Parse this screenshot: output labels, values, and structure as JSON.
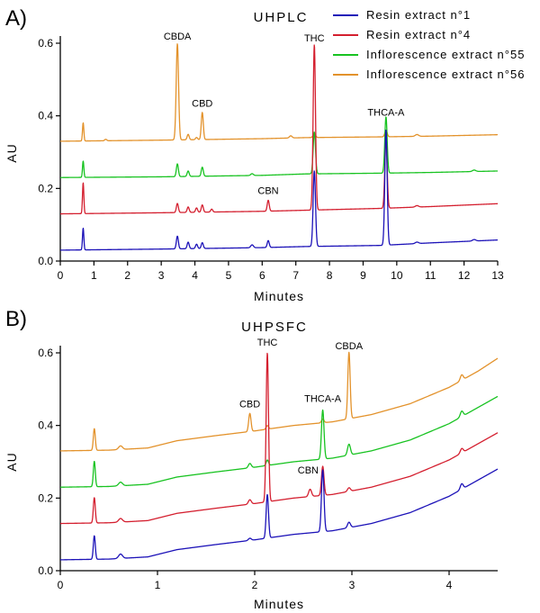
{
  "chart_data": [
    {
      "type": "line",
      "panel": "A)",
      "title": "UHPLC",
      "xlabel": "Minutes",
      "ylabel": "AU",
      "xlim": [
        0,
        13
      ],
      "ylim": [
        0,
        0.6
      ],
      "xticks": [
        0,
        1,
        2,
        3,
        4,
        5,
        6,
        7,
        8,
        9,
        10,
        11,
        12,
        13
      ],
      "yticks": [
        0.0,
        0.2,
        0.4,
        0.6
      ],
      "ytick_labels": [
        "0.0",
        "0.2",
        "0.4",
        "0.6"
      ],
      "legend_position": "top-right",
      "series": [
        {
          "name": "Resin extract n°1",
          "color": "#1c12b8",
          "baseline": [
            [
              0,
              0.03
            ],
            [
              3,
              0.033
            ],
            [
              6,
              0.037
            ],
            [
              7.3,
              0.04
            ],
            [
              9.5,
              0.043
            ],
            [
              11,
              0.05
            ],
            [
              13,
              0.058
            ]
          ],
          "peaks": [
            [
              0.68,
              0.06,
              0.02
            ],
            [
              3.48,
              0.035,
              0.03
            ],
            [
              3.8,
              0.018,
              0.03
            ],
            [
              4.05,
              0.012,
              0.03
            ],
            [
              4.22,
              0.016,
              0.03
            ],
            [
              5.7,
              0.008,
              0.04
            ],
            [
              6.18,
              0.019,
              0.03
            ],
            [
              7.55,
              0.208,
              0.035
            ],
            [
              9.68,
              0.318,
              0.035
            ],
            [
              10.6,
              0.004,
              0.05
            ],
            [
              12.3,
              0.004,
              0.05
            ]
          ]
        },
        {
          "name": "Resin extract n°4",
          "color": "#d41f2f",
          "baseline": [
            [
              0,
              0.13
            ],
            [
              3,
              0.133
            ],
            [
              6,
              0.137
            ],
            [
              7.3,
              0.14
            ],
            [
              9.5,
              0.145
            ],
            [
              11,
              0.15
            ],
            [
              13,
              0.158
            ]
          ],
          "peaks": [
            [
              0.68,
              0.085,
              0.02
            ],
            [
              3.48,
              0.025,
              0.03
            ],
            [
              3.8,
              0.015,
              0.03
            ],
            [
              4.05,
              0.012,
              0.03
            ],
            [
              4.22,
              0.02,
              0.03
            ],
            [
              4.5,
              0.008,
              0.03
            ],
            [
              6.18,
              0.03,
              0.03
            ],
            [
              7.55,
              0.455,
              0.035
            ],
            [
              9.68,
              0.19,
              0.035
            ],
            [
              10.6,
              0.004,
              0.05
            ]
          ]
        },
        {
          "name": "Inflorescence extract n°55",
          "color": "#18c321",
          "baseline": [
            [
              0,
              0.23
            ],
            [
              3,
              0.232
            ],
            [
              6,
              0.236
            ],
            [
              7.3,
              0.24
            ],
            [
              9.5,
              0.242
            ],
            [
              11,
              0.244
            ],
            [
              13,
              0.248
            ]
          ],
          "peaks": [
            [
              0.68,
              0.045,
              0.02
            ],
            [
              3.48,
              0.035,
              0.03
            ],
            [
              3.8,
              0.015,
              0.03
            ],
            [
              4.22,
              0.025,
              0.03
            ],
            [
              5.7,
              0.005,
              0.04
            ],
            [
              7.55,
              0.115,
              0.035
            ],
            [
              9.68,
              0.155,
              0.035
            ],
            [
              12.3,
              0.004,
              0.05
            ]
          ]
        },
        {
          "name": "Inflorescence extract n°56",
          "color": "#e3922b",
          "baseline": [
            [
              0,
              0.33
            ],
            [
              3,
              0.333
            ],
            [
              6,
              0.337
            ],
            [
              7.3,
              0.34
            ],
            [
              9.5,
              0.342
            ],
            [
              11,
              0.344
            ],
            [
              13,
              0.348
            ]
          ],
          "peaks": [
            [
              0.68,
              0.05,
              0.02
            ],
            [
              1.35,
              0.004,
              0.03
            ],
            [
              3.48,
              0.265,
              0.035
            ],
            [
              3.8,
              0.015,
              0.03
            ],
            [
              4.05,
              0.006,
              0.03
            ],
            [
              4.22,
              0.075,
              0.03
            ],
            [
              6.85,
              0.006,
              0.04
            ],
            [
              7.55,
              0.012,
              0.035
            ],
            [
              9.68,
              0.018,
              0.035
            ],
            [
              10.6,
              0.005,
              0.05
            ]
          ]
        }
      ],
      "annotations": [
        {
          "text": "CBDA",
          "x": 3.48,
          "y": 0.6
        },
        {
          "text": "CBD",
          "x": 4.22,
          "y": 0.415
        },
        {
          "text": "THC",
          "x": 7.55,
          "y": 0.595
        },
        {
          "text": "CBN",
          "x": 6.18,
          "y": 0.175
        },
        {
          "text": "THCA-A",
          "x": 9.68,
          "y": 0.39
        }
      ]
    },
    {
      "type": "line",
      "panel": "B)",
      "title": "UHPSFC",
      "xlabel": "Minutes",
      "ylabel": "AU",
      "xlim": [
        0,
        4.5
      ],
      "ylim": [
        0,
        0.6
      ],
      "xticks": [
        0,
        1,
        2,
        3,
        4
      ],
      "yticks": [
        0.0,
        0.2,
        0.4,
        0.6
      ],
      "ytick_labels": [
        "0.0",
        "0.2",
        "0.4",
        "0.6"
      ],
      "series": [
        {
          "name": "Resin extract n°1",
          "color": "#1c12b8",
          "baseline": [
            [
              0,
              0.03
            ],
            [
              0.5,
              0.032
            ],
            [
              0.9,
              0.038
            ],
            [
              1.2,
              0.058
            ],
            [
              1.6,
              0.072
            ],
            [
              2.0,
              0.085
            ],
            [
              2.4,
              0.1
            ],
            [
              2.8,
              0.11
            ],
            [
              3.2,
              0.13
            ],
            [
              3.6,
              0.16
            ],
            [
              4.0,
              0.205
            ],
            [
              4.3,
              0.25
            ],
            [
              4.5,
              0.28
            ]
          ],
          "peaks": [
            [
              0.35,
              0.065,
              0.01
            ],
            [
              0.62,
              0.012,
              0.02
            ],
            [
              1.95,
              0.006,
              0.015
            ],
            [
              2.13,
              0.12,
              0.012
            ],
            [
              2.7,
              0.17,
              0.013
            ],
            [
              2.97,
              0.015,
              0.015
            ],
            [
              4.13,
              0.015,
              0.015
            ]
          ]
        },
        {
          "name": "Resin extract n°4",
          "color": "#d41f2f",
          "baseline": [
            [
              0,
              0.13
            ],
            [
              0.5,
              0.132
            ],
            [
              0.9,
              0.138
            ],
            [
              1.2,
              0.158
            ],
            [
              1.6,
              0.172
            ],
            [
              2.0,
              0.185
            ],
            [
              2.4,
              0.2
            ],
            [
              2.8,
              0.21
            ],
            [
              3.2,
              0.23
            ],
            [
              3.6,
              0.26
            ],
            [
              4.0,
              0.305
            ],
            [
              4.3,
              0.35
            ],
            [
              4.5,
              0.38
            ]
          ],
          "peaks": [
            [
              0.35,
              0.07,
              0.01
            ],
            [
              0.62,
              0.01,
              0.02
            ],
            [
              1.95,
              0.012,
              0.015
            ],
            [
              2.13,
              0.41,
              0.012
            ],
            [
              2.57,
              0.02,
              0.015
            ],
            [
              2.7,
              0.08,
              0.013
            ],
            [
              2.97,
              0.01,
              0.015
            ],
            [
              4.13,
              0.012,
              0.015
            ]
          ]
        },
        {
          "name": "Inflorescence extract n°55",
          "color": "#18c321",
          "baseline": [
            [
              0,
              0.23
            ],
            [
              0.5,
              0.232
            ],
            [
              0.9,
              0.238
            ],
            [
              1.2,
              0.258
            ],
            [
              1.6,
              0.272
            ],
            [
              2.0,
              0.285
            ],
            [
              2.4,
              0.3
            ],
            [
              2.8,
              0.31
            ],
            [
              3.2,
              0.33
            ],
            [
              3.6,
              0.36
            ],
            [
              4.0,
              0.405
            ],
            [
              4.3,
              0.45
            ],
            [
              4.5,
              0.48
            ]
          ],
          "peaks": [
            [
              0.35,
              0.07,
              0.01
            ],
            [
              0.62,
              0.01,
              0.02
            ],
            [
              1.95,
              0.012,
              0.015
            ],
            [
              2.13,
              0.015,
              0.012
            ],
            [
              2.7,
              0.135,
              0.013
            ],
            [
              2.97,
              0.03,
              0.015
            ],
            [
              4.13,
              0.015,
              0.015
            ]
          ]
        },
        {
          "name": "Inflorescence extract n°56",
          "color": "#e3922b",
          "baseline": [
            [
              0,
              0.33
            ],
            [
              0.5,
              0.332
            ],
            [
              0.9,
              0.338
            ],
            [
              1.2,
              0.358
            ],
            [
              1.6,
              0.372
            ],
            [
              2.0,
              0.385
            ],
            [
              2.4,
              0.4
            ],
            [
              2.8,
              0.41
            ],
            [
              3.2,
              0.43
            ],
            [
              3.6,
              0.46
            ],
            [
              4.0,
              0.505
            ],
            [
              4.3,
              0.55
            ],
            [
              4.5,
              0.585
            ]
          ],
          "peaks": [
            [
              0.35,
              0.06,
              0.01
            ],
            [
              0.62,
              0.01,
              0.02
            ],
            [
              1.95,
              0.05,
              0.012
            ],
            [
              2.13,
              0.01,
              0.012
            ],
            [
              2.7,
              0.01,
              0.013
            ],
            [
              2.97,
              0.183,
              0.012
            ],
            [
              4.13,
              0.015,
              0.015
            ]
          ]
        }
      ],
      "annotations": [
        {
          "text": "CBD",
          "x": 1.95,
          "y": 0.44
        },
        {
          "text": "THC",
          "x": 2.13,
          "y": 0.61
        },
        {
          "text": "THCA-A",
          "x": 2.7,
          "y": 0.455
        },
        {
          "text": "CBN",
          "x": 2.55,
          "y": 0.258
        },
        {
          "text": "CBDA",
          "x": 2.97,
          "y": 0.6
        }
      ]
    }
  ]
}
